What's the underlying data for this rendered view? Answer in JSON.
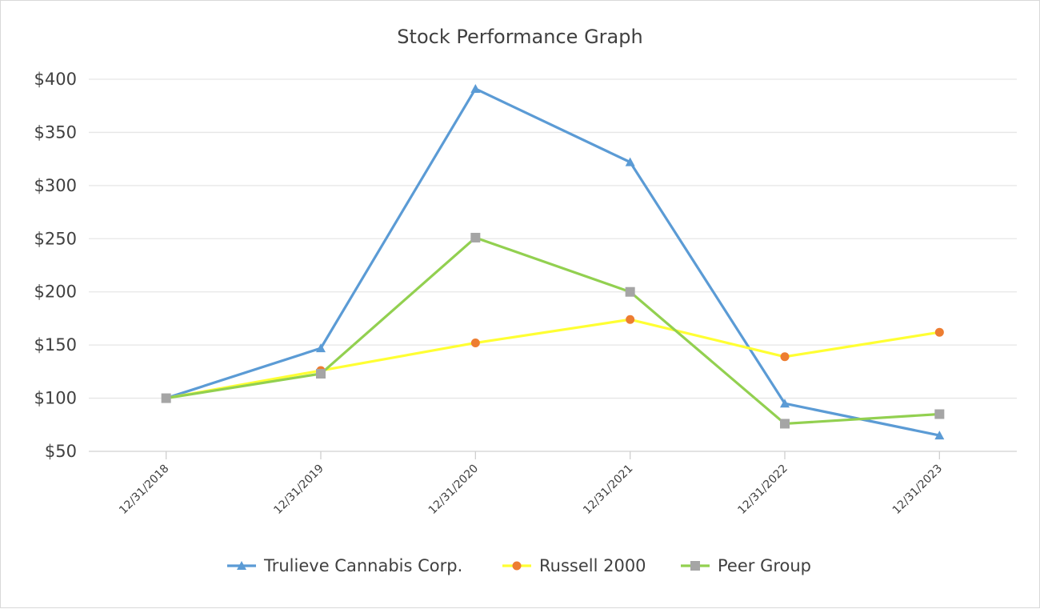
{
  "chart_data": {
    "type": "line",
    "title": "Stock Performance Graph",
    "xlabel": "",
    "ylabel": "",
    "categories": [
      "12/31/2018",
      "12/31/2019",
      "12/31/2020",
      "12/31/2021",
      "12/31/2022",
      "12/31/2023"
    ],
    "ylim": [
      50,
      400
    ],
    "yticks": [
      50,
      100,
      150,
      200,
      250,
      300,
      350,
      400
    ],
    "ytick_labels": [
      "$50",
      "$100",
      "$150",
      "$200",
      "$250",
      "$300",
      "$350",
      "$400"
    ],
    "grid": true,
    "legend": "bottom",
    "series": [
      {
        "name": "Trulieve Cannabis Corp.",
        "values": [
          100,
          147,
          391,
          322,
          95,
          65
        ],
        "color": "#5b9bd5",
        "marker": "triangle"
      },
      {
        "name": "Russell 2000",
        "values": [
          100,
          126,
          152,
          174,
          139,
          162
        ],
        "color": "#ffff33",
        "marker_color": "#ed7d31",
        "marker": "circle"
      },
      {
        "name": "Peer Group",
        "values": [
          100,
          123,
          251,
          200,
          76,
          85
        ],
        "color": "#92d050",
        "marker_color": "#a5a5a5",
        "marker": "square"
      }
    ]
  }
}
